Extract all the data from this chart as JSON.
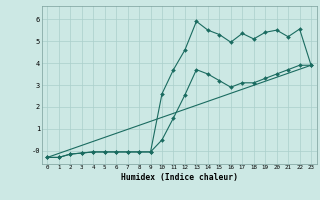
{
  "xlabel": "Humidex (Indice chaleur)",
  "bg_color": "#cce8e4",
  "grid_color": "#aacfcb",
  "line_color": "#1a6b60",
  "xticks": [
    0,
    1,
    2,
    3,
    4,
    5,
    6,
    7,
    8,
    9,
    10,
    11,
    12,
    13,
    14,
    15,
    16,
    17,
    18,
    19,
    20,
    21,
    22,
    23
  ],
  "yticks": [
    0,
    1,
    2,
    3,
    4,
    5,
    6
  ],
  "ytick_labels": [
    "-0",
    "1",
    "2",
    "3",
    "4",
    "5",
    "6"
  ],
  "line1_x": [
    0,
    1,
    2,
    3,
    4,
    5,
    6,
    7,
    8,
    9,
    10,
    11,
    12,
    13,
    14,
    15,
    16,
    17,
    18,
    19,
    20,
    21,
    22,
    23
  ],
  "line1_y": [
    -0.3,
    -0.3,
    -0.15,
    -0.1,
    -0.05,
    -0.05,
    -0.05,
    -0.05,
    -0.05,
    -0.05,
    2.6,
    3.7,
    4.6,
    5.9,
    5.5,
    5.3,
    4.95,
    5.35,
    5.1,
    5.4,
    5.5,
    5.2,
    5.55,
    3.9
  ],
  "line2_x": [
    0,
    1,
    2,
    3,
    4,
    5,
    6,
    7,
    8,
    9,
    10,
    11,
    12,
    13,
    14,
    15,
    16,
    17,
    18,
    19,
    20,
    21,
    22,
    23
  ],
  "line2_y": [
    -0.3,
    -0.3,
    -0.15,
    -0.1,
    -0.05,
    -0.05,
    -0.05,
    -0.05,
    -0.05,
    -0.05,
    0.5,
    1.5,
    2.55,
    3.7,
    3.5,
    3.2,
    2.9,
    3.1,
    3.1,
    3.3,
    3.5,
    3.7,
    3.9,
    3.9
  ],
  "line3_x": [
    0,
    23
  ],
  "line3_y": [
    -0.3,
    3.9
  ],
  "xlim": [
    -0.5,
    23.5
  ],
  "ylim": [
    -0.6,
    6.6
  ]
}
